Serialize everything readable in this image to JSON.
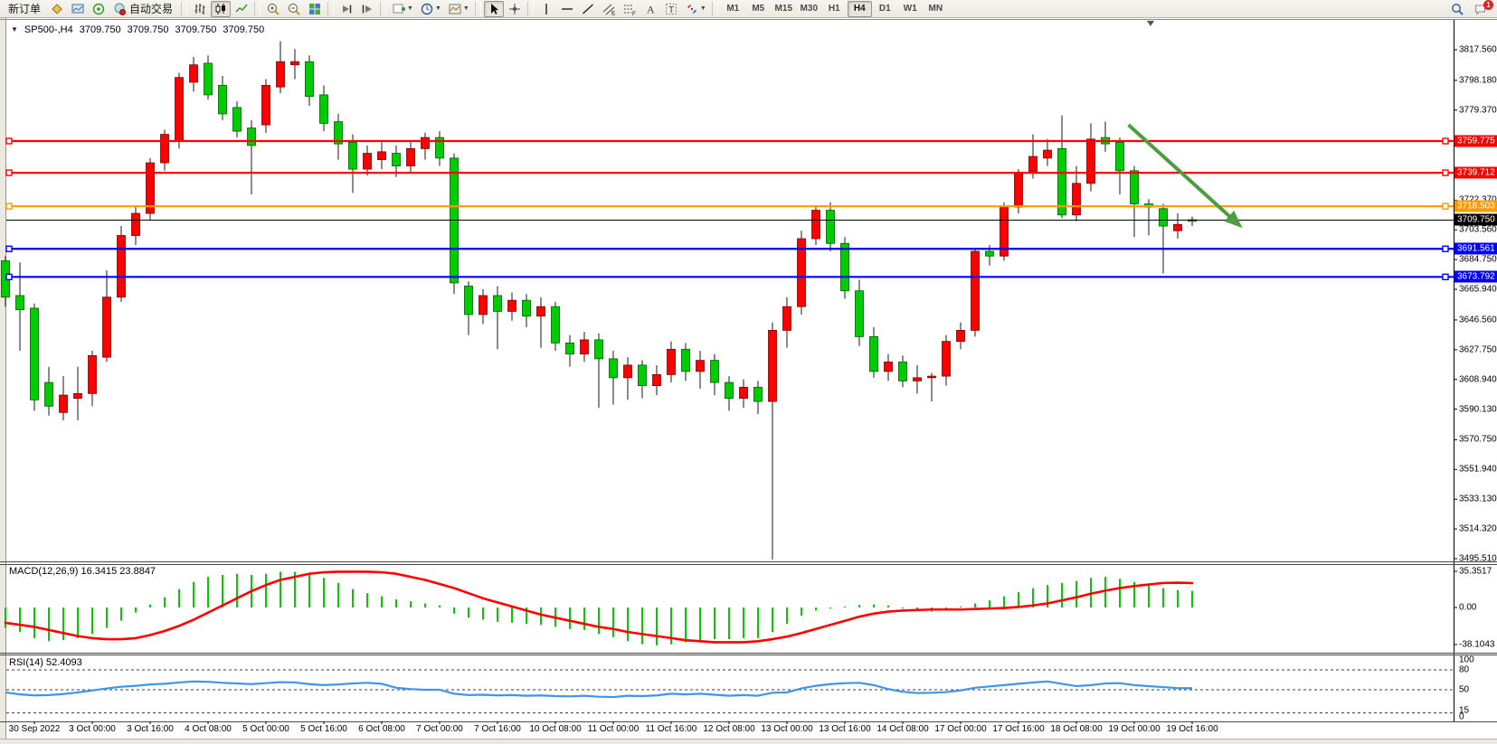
{
  "toolbar": {
    "items": [
      {
        "type": "button",
        "name": "new-order-button",
        "label": "新订单"
      },
      {
        "type": "icon",
        "name": "metaeditor-icon",
        "icon": "diamond"
      },
      {
        "type": "icon",
        "name": "market-watch-icon",
        "icon": "market"
      },
      {
        "type": "icon",
        "name": "signal-icon",
        "icon": "signal"
      },
      {
        "type": "button-icon",
        "name": "auto-trading-button",
        "icon": "autotrade",
        "label": "自动交易"
      },
      {
        "type": "sep"
      },
      {
        "type": "icon",
        "name": "bar-chart-icon",
        "icon": "bars"
      },
      {
        "type": "icon",
        "name": "candlestick-chart-icon",
        "icon": "candles",
        "active": true
      },
      {
        "type": "icon",
        "name": "line-chart-icon",
        "icon": "line"
      },
      {
        "type": "sep"
      },
      {
        "type": "icon",
        "name": "zoom-in-icon",
        "icon": "zoomin"
      },
      {
        "type": "icon",
        "name": "zoom-out-icon",
        "icon": "zoomout"
      },
      {
        "type": "icon",
        "name": "tile-windows-icon",
        "icon": "tile"
      },
      {
        "type": "sep"
      },
      {
        "type": "icon",
        "name": "auto-scroll-icon",
        "icon": "autoscroll"
      },
      {
        "type": "icon",
        "name": "chart-shift-icon",
        "icon": "shift"
      },
      {
        "type": "sep"
      },
      {
        "type": "icon",
        "name": "indicators-icon",
        "icon": "indicators",
        "dropdown": true
      },
      {
        "type": "icon",
        "name": "periods-icon",
        "icon": "clock",
        "dropdown": true
      },
      {
        "type": "icon",
        "name": "templates-icon",
        "icon": "template",
        "dropdown": true
      },
      {
        "type": "sep"
      },
      {
        "type": "icon",
        "name": "cursor-icon",
        "icon": "cursor",
        "active": true
      },
      {
        "type": "icon",
        "name": "crosshair-icon",
        "icon": "crosshair"
      },
      {
        "type": "sep"
      },
      {
        "type": "icon",
        "name": "vertical-line-icon",
        "icon": "vline"
      },
      {
        "type": "icon",
        "name": "horizontal-line-icon",
        "icon": "hline"
      },
      {
        "type": "icon",
        "name": "trendline-icon",
        "icon": "trend"
      },
      {
        "type": "icon",
        "name": "equidistant-channel-icon",
        "icon": "channel"
      },
      {
        "type": "icon",
        "name": "fibonacci-icon",
        "icon": "fibo"
      },
      {
        "type": "icon",
        "name": "text-icon",
        "icon": "textA"
      },
      {
        "type": "icon",
        "name": "text-label-icon",
        "icon": "textT"
      },
      {
        "type": "icon",
        "name": "arrows-icon",
        "icon": "arrows",
        "dropdown": true
      },
      {
        "type": "sep"
      }
    ],
    "timeframes": [
      "M1",
      "M5",
      "M15",
      "M30",
      "H1",
      "H4",
      "D1",
      "W1",
      "MN"
    ],
    "active_timeframe": "H4",
    "notifications_badge": "1"
  },
  "chart_header": {
    "collapse_icon": "▼",
    "symbol": "SP500-,H4",
    "open": "3709.750",
    "high": "3709.750",
    "low": "3709.750",
    "close": "3709.750"
  },
  "chart_data": {
    "type": "candlestick",
    "symbol": "SP500-",
    "timeframe": "H4",
    "bull_color": "#ff0000",
    "bear_color": "#00cd00",
    "background": "#ffffff",
    "price_axis_ticks": [
      "3817.560",
      "3798.180",
      "3779.370",
      "3722.370",
      "3703.560",
      "3684.750",
      "3665.940",
      "3646.560",
      "3627.750",
      "3608.940",
      "3590.130",
      "3570.750",
      "3551.940",
      "3533.130",
      "3514.320",
      "3495.510"
    ],
    "x_labels": [
      "30 Sep 2022",
      "3 Oct 00:00",
      "3 Oct 16:00",
      "4 Oct 08:00",
      "5 Oct 00:00",
      "5 Oct 16:00",
      "6 Oct 08:00",
      "7 Oct 00:00",
      "7 Oct 16:00",
      "10 Oct 08:00",
      "11 Oct 00:00",
      "11 Oct 16:00",
      "12 Oct 08:00",
      "13 Oct 00:00",
      "13 Oct 16:00",
      "14 Oct 08:00",
      "17 Oct 00:00",
      "17 Oct 16:00",
      "18 Oct 08:00",
      "19 Oct 00:00",
      "19 Oct 16:00"
    ],
    "x_label_first_bar": 2,
    "x_label_every": 4,
    "candles": [
      [
        3684,
        3687,
        3655,
        3661
      ],
      [
        3662,
        3683,
        3627,
        3653
      ],
      [
        3654,
        3657,
        3589,
        3596
      ],
      [
        3607,
        3617,
        3586,
        3592
      ],
      [
        3588,
        3611,
        3583,
        3599
      ],
      [
        3597,
        3617,
        3583,
        3600
      ],
      [
        3600,
        3627,
        3592,
        3624
      ],
      [
        3623,
        3678,
        3620,
        3661
      ],
      [
        3661,
        3706,
        3658,
        3700
      ],
      [
        3700,
        3718,
        3694,
        3714
      ],
      [
        3714,
        3749,
        3710,
        3746
      ],
      [
        3746,
        3767,
        3741,
        3764
      ],
      [
        3760,
        3803,
        3755,
        3800
      ],
      [
        3797,
        3813,
        3791,
        3808
      ],
      [
        3809,
        3814,
        3786,
        3789
      ],
      [
        3795,
        3801,
        3773,
        3777
      ],
      [
        3781,
        3785,
        3762,
        3766
      ],
      [
        3768,
        3773,
        3726,
        3757
      ],
      [
        3770,
        3799,
        3765,
        3795
      ],
      [
        3794,
        3823,
        3790,
        3810
      ],
      [
        3808,
        3818,
        3799,
        3810
      ],
      [
        3810,
        3814,
        3782,
        3788
      ],
      [
        3789,
        3795,
        3766,
        3771
      ],
      [
        3772,
        3777,
        3748,
        3758
      ],
      [
        3759,
        3764,
        3727,
        3742
      ],
      [
        3742,
        3757,
        3738,
        3752
      ],
      [
        3748,
        3759,
        3742,
        3753
      ],
      [
        3752,
        3757,
        3737,
        3744
      ],
      [
        3744,
        3760,
        3740,
        3755
      ],
      [
        3755,
        3765,
        3748,
        3762
      ],
      [
        3762,
        3766,
        3744,
        3749
      ],
      [
        3749,
        3752,
        3663,
        3670
      ],
      [
        3668,
        3671,
        3637,
        3650
      ],
      [
        3650,
        3666,
        3644,
        3662
      ],
      [
        3662,
        3668,
        3628,
        3652
      ],
      [
        3652,
        3664,
        3646,
        3659
      ],
      [
        3659,
        3663,
        3642,
        3649
      ],
      [
        3649,
        3661,
        3629,
        3655
      ],
      [
        3655,
        3658,
        3627,
        3632
      ],
      [
        3632,
        3637,
        3617,
        3625
      ],
      [
        3625,
        3639,
        3620,
        3634
      ],
      [
        3634,
        3638,
        3591,
        3622
      ],
      [
        3622,
        3627,
        3593,
        3610
      ],
      [
        3610,
        3623,
        3596,
        3618
      ],
      [
        3618,
        3621,
        3597,
        3605
      ],
      [
        3605,
        3618,
        3599,
        3612
      ],
      [
        3612,
        3633,
        3607,
        3628
      ],
      [
        3628,
        3632,
        3608,
        3614
      ],
      [
        3614,
        3627,
        3603,
        3621
      ],
      [
        3621,
        3625,
        3599,
        3607
      ],
      [
        3607,
        3611,
        3589,
        3597
      ],
      [
        3597,
        3609,
        3591,
        3604
      ],
      [
        3604,
        3608,
        3587,
        3595
      ],
      [
        3595,
        3645,
        3495,
        3640
      ],
      [
        3640,
        3661,
        3629,
        3655
      ],
      [
        3655,
        3703,
        3650,
        3698
      ],
      [
        3698,
        3719,
        3694,
        3716
      ],
      [
        3716,
        3721,
        3690,
        3695
      ],
      [
        3695,
        3699,
        3660,
        3665
      ],
      [
        3665,
        3672,
        3630,
        3636
      ],
      [
        3636,
        3642,
        3610,
        3614
      ],
      [
        3614,
        3625,
        3608,
        3620
      ],
      [
        3620,
        3624,
        3604,
        3608
      ],
      [
        3608,
        3618,
        3600,
        3610
      ],
      [
        3610,
        3613,
        3595,
        3611
      ],
      [
        3611,
        3637,
        3605,
        3633
      ],
      [
        3633,
        3645,
        3628,
        3640
      ],
      [
        3640,
        3692,
        3636,
        3690
      ],
      [
        3690,
        3694,
        3681,
        3687
      ],
      [
        3687,
        3721,
        3684,
        3718
      ],
      [
        3718,
        3742,
        3714,
        3740
      ],
      [
        3740,
        3764,
        3736,
        3750
      ],
      [
        3749,
        3761,
        3744,
        3754
      ],
      [
        3755,
        3776,
        3711,
        3713
      ],
      [
        3713,
        3744,
        3709,
        3733
      ],
      [
        3733,
        3771,
        3728,
        3761
      ],
      [
        3762,
        3772,
        3753,
        3758
      ],
      [
        3759,
        3762,
        3726,
        3741
      ],
      [
        3741,
        3744,
        3699,
        3720
      ],
      [
        3720,
        3723,
        3700,
        3718
      ],
      [
        3717,
        3720,
        3676,
        3706
      ],
      [
        3703,
        3714,
        3698,
        3707
      ],
      [
        3710,
        3712,
        3706,
        3709
      ]
    ],
    "hlines": [
      {
        "price": 3759.775,
        "tag": "3759.775",
        "color": "#ff0000",
        "width": 2.2,
        "handles": true,
        "name": "resistance-line-1"
      },
      {
        "price": 3739.712,
        "tag": "3739.712",
        "color": "#ff0000",
        "width": 2.2,
        "handles": true,
        "name": "resistance-line-2"
      },
      {
        "price": 3718.503,
        "tag": "3718.503",
        "color": "#ff9900",
        "width": 2.2,
        "handles": true,
        "name": "pivot-line"
      },
      {
        "price": 3709.75,
        "tag": "3709.750",
        "color": "#000000",
        "width": 1,
        "handles": false,
        "name": "current-price-line"
      },
      {
        "price": 3691.561,
        "tag": "3691.561",
        "color": "#0000ff",
        "width": 2.2,
        "handles": true,
        "name": "support-line-1"
      },
      {
        "price": 3673.792,
        "tag": "3673.792",
        "color": "#0000ff",
        "width": 2.2,
        "handles": true,
        "name": "support-line-2"
      }
    ],
    "arrow": {
      "color": "#4b9e3f",
      "from": {
        "bar": 77.6,
        "price": 3770
      },
      "to": {
        "bar": 85.2,
        "price": 3707
      }
    },
    "macd": {
      "label": "MACD(12,26,9) 16.3415 23.8847",
      "params": "12,26,9",
      "value_macd": "16.3415",
      "value_signal": "23.8847",
      "axis_labels": [
        "35.3517",
        "0.00",
        "-38.1043"
      ],
      "hist_color": "#00cd00",
      "signal_color": "#ff0000",
      "hist": [
        -20,
        -24,
        -30,
        -33,
        -32,
        -30,
        -26,
        -20,
        -13,
        -5,
        3,
        10,
        18,
        25,
        30,
        32,
        33,
        32,
        33,
        35,
        35,
        33,
        29,
        24,
        18,
        14,
        11,
        8,
        6,
        4,
        2,
        -6,
        -10,
        -12,
        -14,
        -15,
        -16,
        -17,
        -19,
        -21,
        -22,
        -26,
        -29,
        -33,
        -36,
        -37,
        -36,
        -34,
        -32,
        -31,
        -31,
        -30,
        -30,
        -24,
        -16,
        -8,
        -3,
        -1,
        1,
        2.5,
        3,
        2,
        -1,
        -3,
        -4,
        -2,
        1,
        4,
        7,
        11,
        15,
        19,
        22,
        24,
        26,
        29,
        30,
        28,
        25,
        22,
        19,
        17,
        16.3
      ],
      "signal": [
        -15,
        -17,
        -19,
        -22,
        -25,
        -28,
        -30,
        -31,
        -31,
        -30,
        -27,
        -23,
        -18,
        -12,
        -5,
        2,
        9,
        16,
        22,
        27,
        30,
        33,
        34.5,
        35,
        35,
        35,
        34.5,
        33,
        30,
        27,
        23,
        19,
        14,
        9,
        5,
        1,
        -3,
        -7,
        -10,
        -13,
        -16,
        -19,
        -21,
        -24,
        -26,
        -28,
        -30,
        -32,
        -33,
        -34,
        -34,
        -34,
        -33,
        -31,
        -28.5,
        -25,
        -21,
        -17,
        -13,
        -9,
        -6,
        -4,
        -3,
        -2.5,
        -2,
        -2,
        -2,
        -1.5,
        -1,
        -0.5,
        0.5,
        2,
        4,
        7,
        10,
        13.5,
        16.5,
        19,
        21,
        22.5,
        24,
        24.3,
        23.9
      ]
    },
    "rsi": {
      "label": "RSI(14) 52.4093",
      "period": "14",
      "value": "52.4093",
      "color": "#3e96e8",
      "levels": [
        80,
        50,
        15
      ],
      "axis_labels": [
        "100",
        "80",
        "50",
        "15",
        "0"
      ],
      "series": [
        46,
        43,
        41.5,
        42,
        43.5,
        46,
        49,
        52,
        54.5,
        56,
        58,
        59,
        61,
        62.5,
        62,
        60.5,
        59.5,
        58.5,
        60,
        61.5,
        61,
        58.5,
        57,
        58,
        59.5,
        60.5,
        59,
        53,
        51,
        50,
        50,
        44,
        42,
        42.5,
        41.5,
        42,
        41,
        41.5,
        40.5,
        40,
        41,
        39.5,
        39,
        41,
        40.5,
        41.5,
        44,
        43,
        44,
        42.5,
        41,
        42,
        41,
        45.5,
        46,
        52,
        56,
        58.5,
        60,
        60.5,
        57,
        51,
        47,
        45,
        45.5,
        46.5,
        49,
        53,
        55,
        57,
        59,
        61,
        62.5,
        59,
        55.5,
        57,
        59.5,
        60,
        57,
        55.5,
        54,
        52.5,
        52.4
      ]
    }
  }
}
